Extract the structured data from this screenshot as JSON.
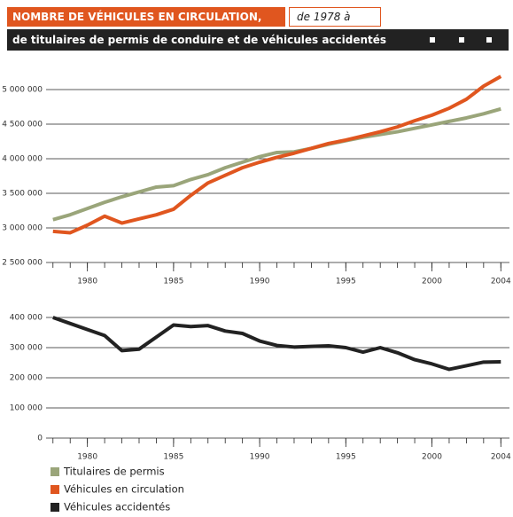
{
  "header": {
    "title": "NOMBRE DE VÉHICULES EN CIRCULATION,",
    "period": "de 1978 à 2004",
    "subtitle": "de titulaires de permis de conduire et de véhicules accidentés"
  },
  "chart_data": [
    {
      "type": "line",
      "x": [
        1978,
        1979,
        1980,
        1981,
        1982,
        1983,
        1984,
        1985,
        1986,
        1987,
        1988,
        1989,
        1990,
        1991,
        1992,
        1993,
        1994,
        1995,
        1996,
        1997,
        1998,
        1999,
        2000,
        2001,
        2002,
        2003,
        2004
      ],
      "xlim": [
        1977.6,
        2004.5
      ],
      "xticks": [
        1980,
        1985,
        1990,
        1995,
        2000,
        2004
      ],
      "ylim": [
        2500000,
        5250000
      ],
      "yticks": [
        {
          "value": 2500000,
          "label": "2 500 000"
        },
        {
          "value": 3000000,
          "label": "3 000 000"
        },
        {
          "value": 3500000,
          "label": "3 500 000"
        },
        {
          "value": 4000000,
          "label": "4 000 000"
        },
        {
          "value": 4500000,
          "label": "4 500 000"
        },
        {
          "value": 5000000,
          "label": "5 000 000"
        }
      ],
      "grid": true,
      "series": [
        {
          "name": "Titulaires de permis",
          "color": "#9aa57a",
          "values": [
            3120000,
            3190000,
            3280000,
            3370000,
            3450000,
            3520000,
            3590000,
            3610000,
            3700000,
            3770000,
            3870000,
            3950000,
            4030000,
            4090000,
            4100000,
            4150000,
            4210000,
            4260000,
            4310000,
            4350000,
            4390000,
            4440000,
            4490000,
            4540000,
            4590000,
            4650000,
            4720000
          ]
        },
        {
          "name": "Véhicules en circulation",
          "color": "#e0561f",
          "values": [
            2950000,
            2930000,
            3040000,
            3170000,
            3070000,
            3130000,
            3190000,
            3270000,
            3470000,
            3650000,
            3760000,
            3870000,
            3950000,
            4020000,
            4080000,
            4150000,
            4220000,
            4270000,
            4330000,
            4390000,
            4460000,
            4550000,
            4630000,
            4730000,
            4860000,
            5050000,
            5190000
          ]
        }
      ]
    },
    {
      "type": "line",
      "x": [
        1978,
        1979,
        1980,
        1981,
        1982,
        1983,
        1984,
        1985,
        1986,
        1987,
        1988,
        1989,
        1990,
        1991,
        1992,
        1993,
        1994,
        1995,
        1996,
        1997,
        1998,
        1999,
        2000,
        2001,
        2002,
        2003,
        2004
      ],
      "xlim": [
        1977.6,
        2004.5
      ],
      "xticks": [
        1980,
        1985,
        1990,
        1995,
        2000,
        2004
      ],
      "ylim": [
        0,
        400000
      ],
      "yticks": [
        0,
        {
          "value": 100000,
          "label": "100 000"
        },
        {
          "value": 200000,
          "label": "200 000"
        },
        {
          "value": 300000,
          "label": "300 000"
        },
        {
          "value": 400000,
          "label": "400 000"
        }
      ],
      "grid": true,
      "series": [
        {
          "name": "Véhicules accidentés",
          "color": "#222222",
          "values": [
            400000,
            380000,
            360000,
            340000,
            290000,
            295000,
            335000,
            375000,
            370000,
            373000,
            355000,
            347000,
            322000,
            307000,
            302000,
            304000,
            306000,
            300000,
            285000,
            300000,
            283000,
            260000,
            246000,
            228000,
            240000,
            252000,
            253000
          ]
        }
      ]
    }
  ]
}
